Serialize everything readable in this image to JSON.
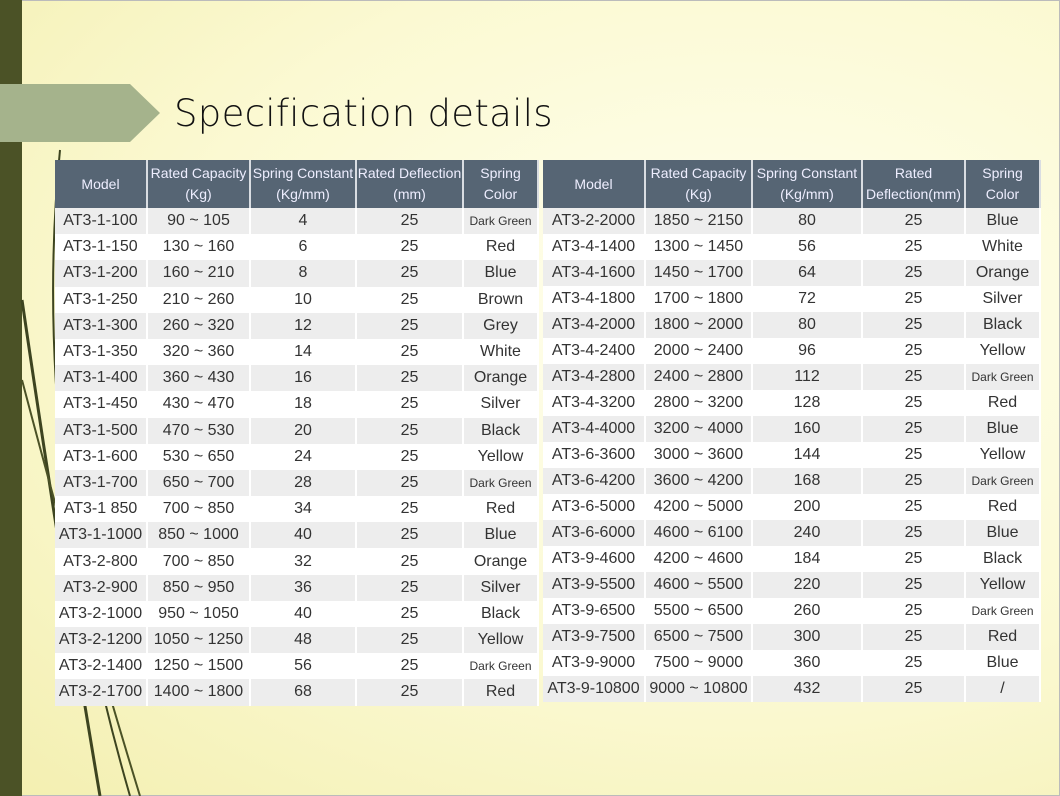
{
  "title": "Specification details",
  "left_table": {
    "headers": [
      [
        "Rated Capacity",
        "(Kg)"
      ],
      [
        "Spring Constant",
        "(Kg/mm)"
      ],
      [
        "Rated Deflection",
        "(mm)"
      ],
      [
        "Spring",
        "Color"
      ]
    ],
    "header_model": "Model",
    "rows": [
      [
        "AT3-1-100",
        "90 ~ 105",
        "4",
        "25",
        "Dark Green"
      ],
      [
        "AT3-1-150",
        "130 ~ 160",
        "6",
        "25",
        "Red"
      ],
      [
        "AT3-1-200",
        "160 ~ 210",
        "8",
        "25",
        "Blue"
      ],
      [
        "AT3-1-250",
        "210 ~ 260",
        "10",
        "25",
        "Brown"
      ],
      [
        "AT3-1-300",
        "260 ~ 320",
        "12",
        "25",
        "Grey"
      ],
      [
        "AT3-1-350",
        "320 ~ 360",
        "14",
        "25",
        "White"
      ],
      [
        "AT3-1-400",
        "360 ~ 430",
        "16",
        "25",
        "Orange"
      ],
      [
        "AT3-1-450",
        "430 ~ 470",
        "18",
        "25",
        "Silver"
      ],
      [
        "AT3-1-500",
        "470 ~ 530",
        "20",
        "25",
        "Black"
      ],
      [
        "AT3-1-600",
        "530 ~ 650",
        "24",
        "25",
        "Yellow"
      ],
      [
        "AT3-1-700",
        "650 ~ 700",
        "28",
        "25",
        "Dark Green"
      ],
      [
        "AT3-1 850",
        "700 ~ 850",
        "34",
        "25",
        "Red"
      ],
      [
        "AT3-1-1000",
        "850 ~ 1000",
        "40",
        "25",
        "Blue"
      ],
      [
        "AT3-2-800",
        "700 ~ 850",
        "32",
        "25",
        "Orange"
      ],
      [
        "AT3-2-900",
        "850 ~ 950",
        "36",
        "25",
        "Silver"
      ],
      [
        "AT3-2-1000",
        "950 ~ 1050",
        "40",
        "25",
        "Black"
      ],
      [
        "AT3-2-1200",
        "1050 ~ 1250",
        "48",
        "25",
        "Yellow"
      ],
      [
        "AT3-2-1400",
        "1250 ~ 1500",
        "56",
        "25",
        "Dark Green"
      ],
      [
        "AT3-2-1700",
        "1400 ~ 1800",
        "68",
        "25",
        "Red"
      ]
    ]
  },
  "right_table": {
    "headers": [
      [
        "Rated Capacity",
        "(Kg)"
      ],
      [
        "Spring Constant",
        "(Kg/mm)"
      ],
      [
        "Rated",
        "Deflection(mm)"
      ],
      [
        "Spring",
        "Color"
      ]
    ],
    "header_model": "Model",
    "rows": [
      [
        "AT3-2-2000",
        "1850 ~ 2150",
        "80",
        "25",
        "Blue"
      ],
      [
        "AT3-4-1400",
        "1300 ~ 1450",
        "56",
        "25",
        "White"
      ],
      [
        "AT3-4-1600",
        "1450 ~ 1700",
        "64",
        "25",
        "Orange"
      ],
      [
        "AT3-4-1800",
        "1700 ~ 1800",
        "72",
        "25",
        "Silver"
      ],
      [
        "AT3-4-2000",
        "1800 ~ 2000",
        "80",
        "25",
        "Black"
      ],
      [
        "AT3-4-2400",
        "2000 ~ 2400",
        "96",
        "25",
        "Yellow"
      ],
      [
        "AT3-4-2800",
        "2400 ~ 2800",
        "112",
        "25",
        "Dark Green"
      ],
      [
        "AT3-4-3200",
        "2800 ~ 3200",
        "128",
        "25",
        "Red"
      ],
      [
        "AT3-4-4000",
        "3200 ~ 4000",
        "160",
        "25",
        "Blue"
      ],
      [
        "AT3-6-3600",
        "3000 ~ 3600",
        "144",
        "25",
        "Yellow"
      ],
      [
        "AT3-6-4200",
        "3600 ~ 4200",
        "168",
        "25",
        "Dark Green"
      ],
      [
        "AT3-6-5000",
        "4200 ~ 5000",
        "200",
        "25",
        "Red"
      ],
      [
        "AT3-6-6000",
        "4600 ~ 6100",
        "240",
        "25",
        "Blue"
      ],
      [
        "AT3-9-4600",
        "4200 ~ 4600",
        "184",
        "25",
        "Black"
      ],
      [
        "AT3-9-5500",
        "4600 ~ 5500",
        "220",
        "25",
        "Yellow"
      ],
      [
        "AT3-9-6500",
        "5500 ~ 6500",
        "260",
        "25",
        "Dark Green"
      ],
      [
        "AT3-9-7500",
        "6500 ~ 7500",
        "300",
        "25",
        "Red"
      ],
      [
        "AT3-9-9000",
        "7500 ~ 9000",
        "360",
        "25",
        "Blue"
      ],
      [
        "AT3-9-10800",
        "9000 ~ 10800",
        "432",
        "25",
        "/"
      ]
    ]
  }
}
